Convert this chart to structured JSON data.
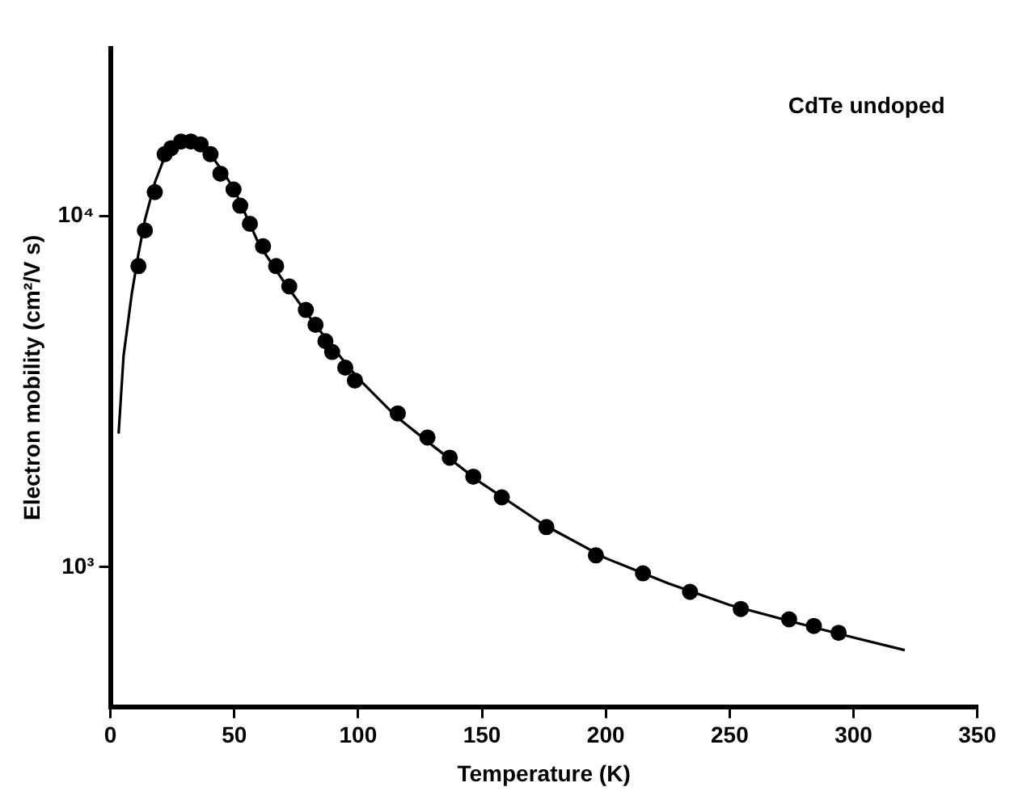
{
  "chart_data": {
    "type": "scatter",
    "xlabel": "Temperature (K)",
    "ylabel": "Electron mobility (cm²/V s)",
    "annotations": [
      "CdTe undoped"
    ],
    "xlim": [
      0,
      350
    ],
    "xticks": [
      0,
      50,
      100,
      150,
      200,
      250,
      300,
      350
    ],
    "ylim": [
      400,
      30000
    ],
    "yticks": [
      {
        "value": 1000,
        "label": "10³"
      },
      {
        "value": 10000,
        "label": "10⁴"
      }
    ],
    "log": "y",
    "grid": false,
    "legend": false,
    "series": [
      {
        "type": "scatter",
        "color": "#000000",
        "marker": "circle",
        "x": [
          11.3,
          13.9,
          17.9,
          21.9,
          24.5,
          28.5,
          32.5,
          36.4,
          40.4,
          44.4,
          49.7,
          52.4,
          56.3,
          61.6,
          66.9,
          72.2,
          78.9,
          82.8,
          86.8,
          89.5,
          94.8,
          98.7,
          116,
          128,
          137,
          146.5,
          158,
          176,
          196,
          215,
          234,
          254.5,
          274,
          284,
          294
        ],
        "values": [
          7200,
          9100,
          11700,
          15000,
          15600,
          16300,
          16300,
          16000,
          15000,
          13200,
          11900,
          10700,
          9500,
          8200,
          7200,
          6300,
          5400,
          4900,
          4400,
          4100,
          3700,
          3400,
          2740,
          2340,
          2050,
          1810,
          1580,
          1300,
          1080,
          960,
          850,
          760,
          710,
          680,
          650
        ]
      },
      {
        "type": "line",
        "color": "#000000",
        "marker": "none",
        "line_style": "solid",
        "x": [
          3.3,
          5.3,
          8.6,
          11.3,
          14,
          18,
          22,
          26,
          30,
          35,
          40,
          45,
          50,
          60,
          70,
          80,
          90,
          100,
          115,
          130,
          150,
          175,
          200,
          225,
          250,
          275,
          300,
          320.7
        ],
        "values": [
          2400,
          4000,
          6000,
          7800,
          9800,
          12500,
          14800,
          16000,
          16400,
          16200,
          15100,
          13500,
          11900,
          8300,
          6500,
          5200,
          4200,
          3450,
          2700,
          2220,
          1730,
          1320,
          1060,
          900,
          780,
          700,
          630,
          580
        ]
      }
    ]
  }
}
